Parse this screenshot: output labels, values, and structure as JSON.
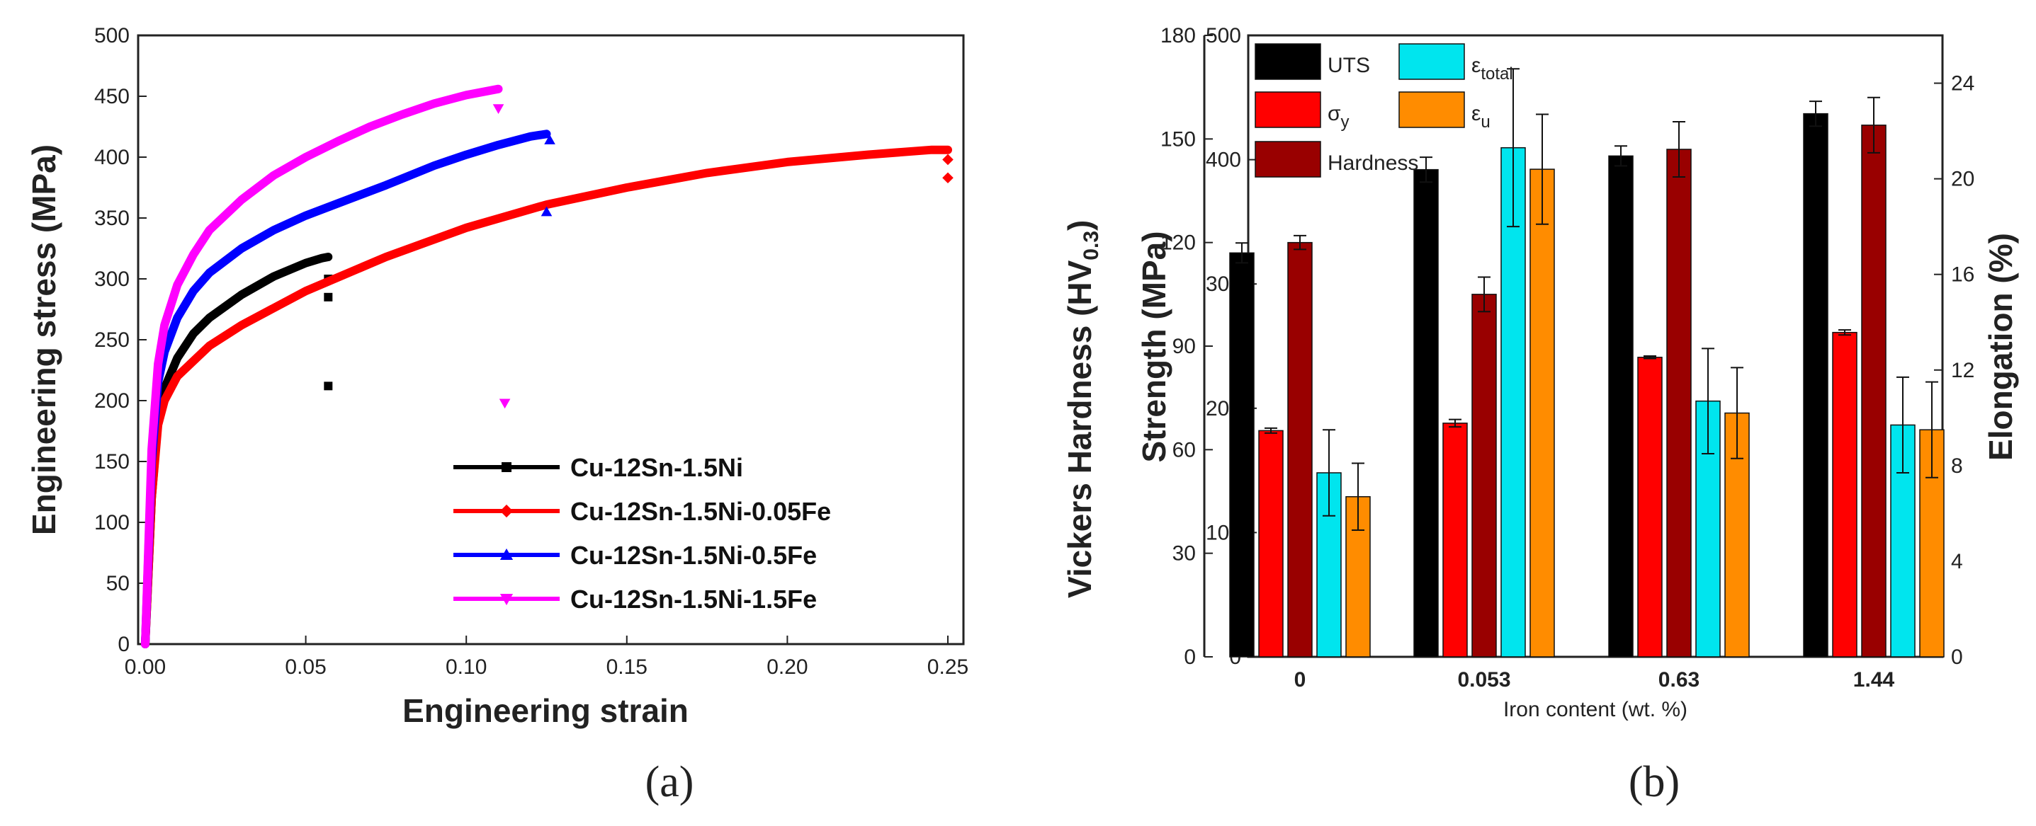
{
  "chart_data": [
    {
      "type": "line",
      "panel_label": "(a)",
      "xlabel": "Engineering strain",
      "ylabel": "Engineering stress (MPa)",
      "xlim": [
        0,
        0.25
      ],
      "ylim": [
        0,
        500
      ],
      "xticks": [
        "0.00",
        "0.05",
        "0.10",
        "0.15",
        "0.20",
        "0.25"
      ],
      "yticks": [
        "0",
        "50",
        "100",
        "150",
        "200",
        "250",
        "300",
        "350",
        "400",
        "450",
        "500"
      ],
      "series": [
        {
          "name": "Cu-12Sn-1.5Ni",
          "color": "#000000",
          "marker": "square",
          "x": [
            0,
            0.002,
            0.004,
            0.006,
            0.01,
            0.015,
            0.02,
            0.03,
            0.04,
            0.05,
            0.055,
            0.057
          ],
          "y": [
            0,
            120,
            185,
            210,
            235,
            255,
            268,
            287,
            302,
            313,
            317,
            318
          ],
          "fracture": [
            [
              0.057,
              300
            ],
            [
              0.057,
              285
            ],
            [
              0.057,
              212
            ]
          ]
        },
        {
          "name": "Cu-12Sn-1.5Ni-0.05Fe",
          "color": "#ff0000",
          "marker": "diamond",
          "x": [
            0,
            0.002,
            0.004,
            0.006,
            0.01,
            0.02,
            0.03,
            0.05,
            0.075,
            0.1,
            0.125,
            0.15,
            0.175,
            0.2,
            0.225,
            0.245,
            0.25
          ],
          "y": [
            0,
            120,
            180,
            200,
            220,
            245,
            262,
            290,
            318,
            342,
            361,
            375,
            387,
            396,
            402,
            406,
            406
          ],
          "fracture": [
            [
              0.25,
              398
            ],
            [
              0.25,
              383
            ]
          ]
        },
        {
          "name": "Cu-12Sn-1.5Ni-0.5Fe",
          "color": "#0000ff",
          "marker": "triangle",
          "x": [
            0,
            0.002,
            0.004,
            0.006,
            0.01,
            0.015,
            0.02,
            0.03,
            0.04,
            0.05,
            0.06,
            0.075,
            0.09,
            0.1,
            0.11,
            0.12,
            0.125
          ],
          "y": [
            0,
            150,
            215,
            240,
            268,
            290,
            305,
            325,
            340,
            352,
            362,
            377,
            393,
            402,
            410,
            417,
            419
          ],
          "fracture": [
            [
              0.126,
              414
            ],
            [
              0.125,
              355
            ]
          ]
        },
        {
          "name": "Cu-12Sn-1.5Ni-1.5Fe",
          "color": "#ff00ff",
          "marker": "inverted-triangle",
          "x": [
            0,
            0.002,
            0.004,
            0.006,
            0.01,
            0.015,
            0.02,
            0.03,
            0.04,
            0.05,
            0.06,
            0.07,
            0.08,
            0.09,
            0.1,
            0.11
          ],
          "y": [
            0,
            160,
            230,
            262,
            295,
            320,
            340,
            365,
            385,
            400,
            413,
            425,
            435,
            444,
            451,
            456
          ],
          "fracture": [
            [
              0.11,
              440
            ],
            [
              0.112,
              198
            ]
          ]
        }
      ]
    },
    {
      "type": "bar",
      "panel_label": "(b)",
      "xlabel": "Iron content (wt. %)",
      "ylabel_left_outer": "Vickers Hardness (HV",
      "ylabel_left_outer_sub": "0.3",
      "ylabel_left_outer_close": ")",
      "ylabel_left_inner": "Strength (MPa)",
      "ylabel_right": "Elongation (%)",
      "categories": [
        "0",
        "0.053",
        "0.63",
        "1.44"
      ],
      "hardness_axis": {
        "ylim": [
          0,
          180
        ],
        "ticks": [
          "0",
          "30",
          "60",
          "90",
          "120",
          "150",
          "180"
        ]
      },
      "strength_axis": {
        "ylim": [
          0,
          500
        ],
        "ticks": [
          "0",
          "100",
          "200",
          "300",
          "400",
          "500"
        ]
      },
      "elongation_axis": {
        "ylim": [
          0,
          26
        ],
        "ticks": [
          "0",
          "4",
          "8",
          "12",
          "16",
          "20",
          "24"
        ]
      },
      "legend": [
        {
          "key": "uts",
          "label": "UTS",
          "color": "#000000"
        },
        {
          "key": "eps_total",
          "label": "ε",
          "sub": "total",
          "color": "#00e5ee"
        },
        {
          "key": "sigma_y",
          "label": "σ",
          "sub": "y",
          "color": "#ff0000"
        },
        {
          "key": "eps_u",
          "label": "ε",
          "sub": "u",
          "color": "#ff8c00"
        },
        {
          "key": "hardness",
          "label": "Hardness",
          "color": "#990000"
        }
      ],
      "series": [
        {
          "key": "uts",
          "axis": "strength",
          "values": [
            325,
            392,
            403,
            437
          ],
          "errors": [
            8,
            10,
            8,
            10
          ]
        },
        {
          "key": "sigma_y",
          "axis": "strength",
          "values": [
            182,
            188,
            241,
            261
          ],
          "errors": [
            2,
            3,
            1,
            2
          ]
        },
        {
          "key": "hardness",
          "axis": "hardness",
          "values": [
            120,
            105,
            147,
            154
          ],
          "errors": [
            2,
            5,
            8,
            8
          ]
        },
        {
          "key": "eps_total",
          "axis": "elongation",
          "values": [
            7.7,
            21.3,
            10.7,
            9.7
          ],
          "errors": [
            1.8,
            3.3,
            2.2,
            2.0
          ]
        },
        {
          "key": "eps_u",
          "axis": "elongation",
          "values": [
            6.7,
            20.4,
            10.2,
            9.5
          ],
          "errors": [
            1.4,
            2.3,
            1.9,
            2.0
          ]
        }
      ]
    }
  ]
}
